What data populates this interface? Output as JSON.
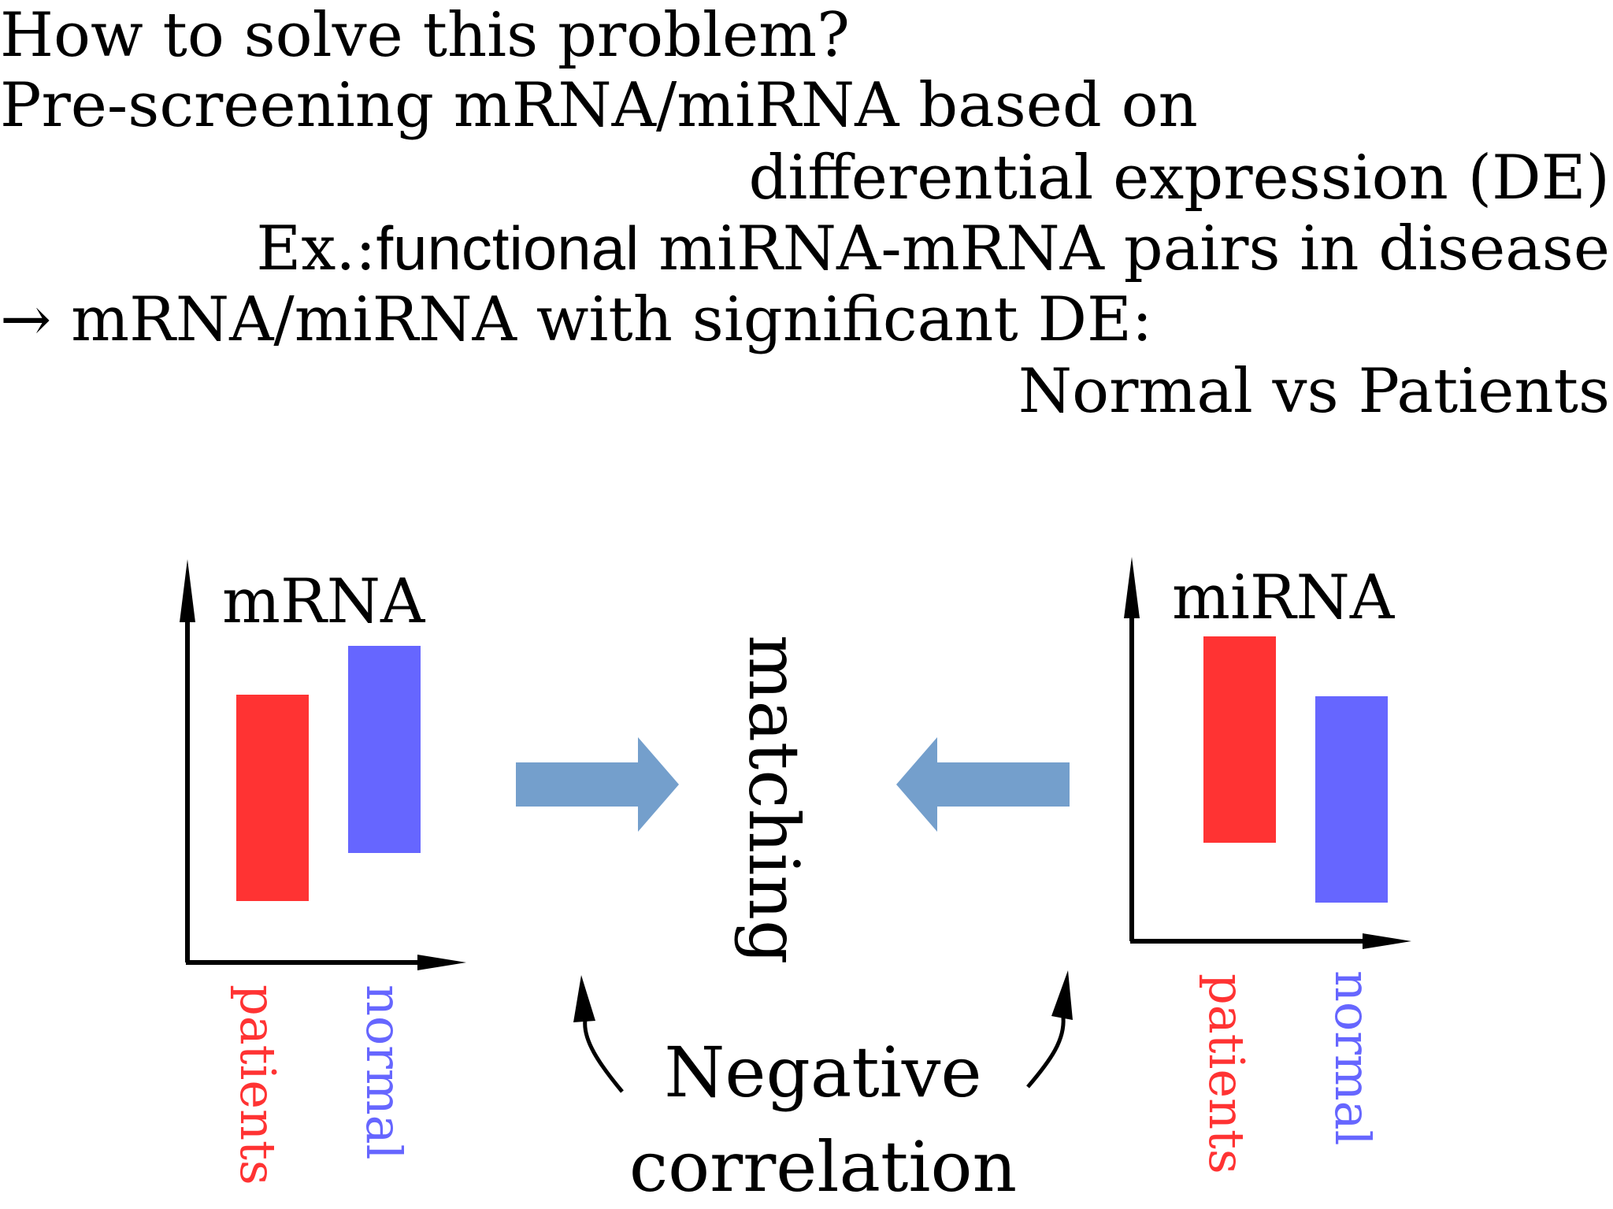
{
  "text": {
    "line1": "How to solve this problem?",
    "line2": "Pre-screening mRNA/miRNA based on",
    "line3": "differential expression (DE)",
    "line4_prefix": "Ex.:",
    "line4_sans": "functional",
    "line4_rest": " miRNA-mRNA pairs in disease",
    "line5": "→ mRNA/miRNA with significant DE:",
    "line6": "Normal vs Patients"
  },
  "left_panel": {
    "title": "mRNA",
    "bars": [
      {
        "label": "patients",
        "color": "#ff3333",
        "low": 0.3,
        "high": 1.3
      },
      {
        "label": "normal",
        "color": "#6666ff",
        "low": 0.53,
        "high": 1.54
      }
    ]
  },
  "right_panel": {
    "title": "miRNA",
    "bars": [
      {
        "label": "patients",
        "color": "#ff3333",
        "low": 0.48,
        "high": 1.48
      },
      {
        "label": "normal",
        "color": "#6666ff",
        "low": 0.19,
        "high": 1.19
      }
    ]
  },
  "center": {
    "matching": "matching",
    "neg1": "Negative",
    "neg2": "correlation",
    "arrow_color": "#749fcc"
  }
}
